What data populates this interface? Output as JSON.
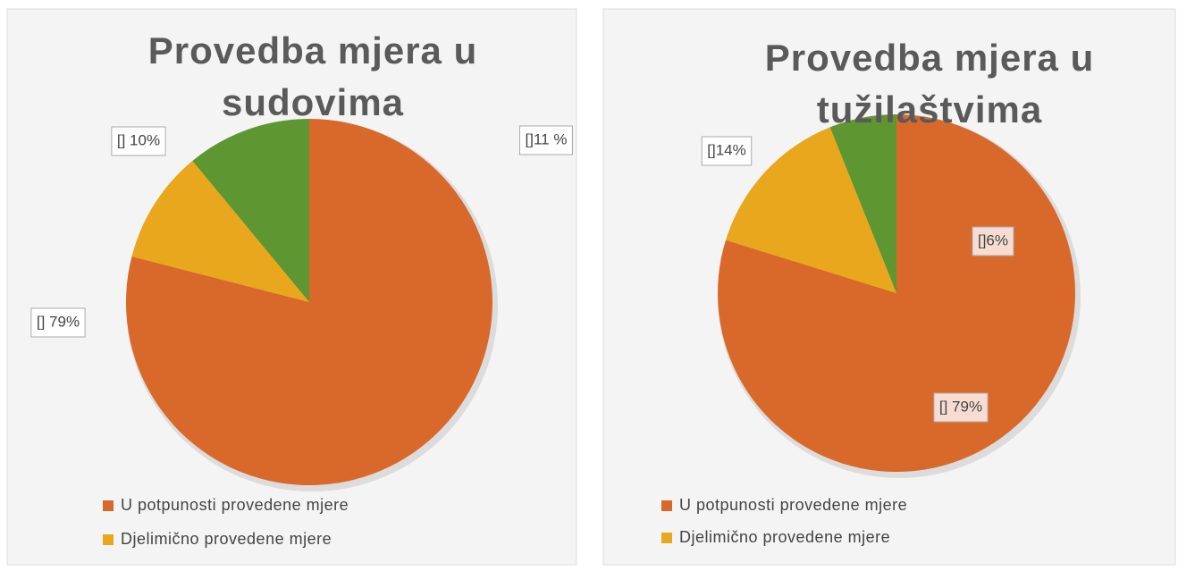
{
  "chart_data": [
    {
      "type": "pie",
      "title": "Provedba mjera u sudovima",
      "categories": [
        "U potpunosti provedene mjere",
        "Djelimično provedene mjere",
        null
      ],
      "values": [
        79,
        10,
        11
      ],
      "value_labels": [
        "[] 79%",
        "[] 10%",
        "[]11 %"
      ],
      "colors": [
        "#d9692b",
        "#e8a71c",
        "#5e9632"
      ]
    },
    {
      "type": "pie",
      "title": "Provedba mjera u tužilaštvima",
      "categories": [
        "U potpunosti provedene mjere",
        "Djelimično provedene mjere",
        null
      ],
      "values": [
        79,
        14,
        6
      ],
      "value_labels": [
        "[] 79%",
        "[]14%",
        "[]6%"
      ],
      "colors": [
        "#d9692b",
        "#e8a71c",
        "#5e9632"
      ]
    }
  ]
}
